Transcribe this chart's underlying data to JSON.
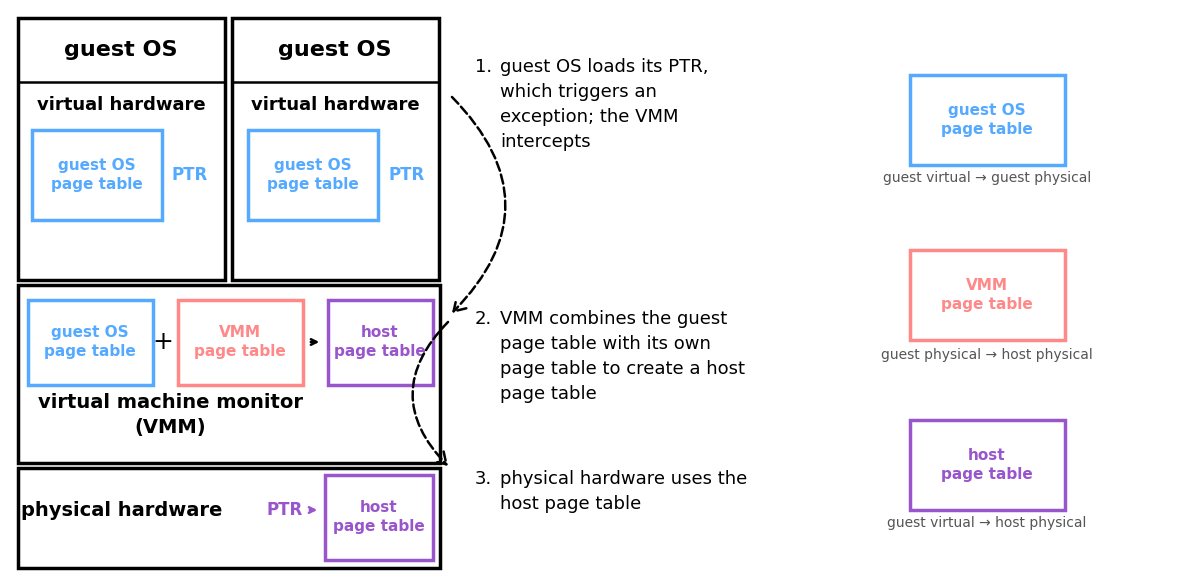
{
  "bg_color": "#ffffff",
  "text_color": "#000000",
  "blue_color": "#55aaff",
  "red_color": "#ff8888",
  "purple_color": "#9955cc",
  "step1_text": "guest OS loads its PTR,\nwhich triggers an\nexception; the VMM\nintercepts",
  "step2_text": "VMM combines the guest\npage table with its own\npage table to create a host\npage table",
  "step3_text": "physical hardware uses the\nhost page table",
  "legend_blue_sub": "guest virtual → guest physical",
  "legend_red_sub": "guest physical → host physical",
  "legend_purple_sub": "guest virtual → host physical"
}
